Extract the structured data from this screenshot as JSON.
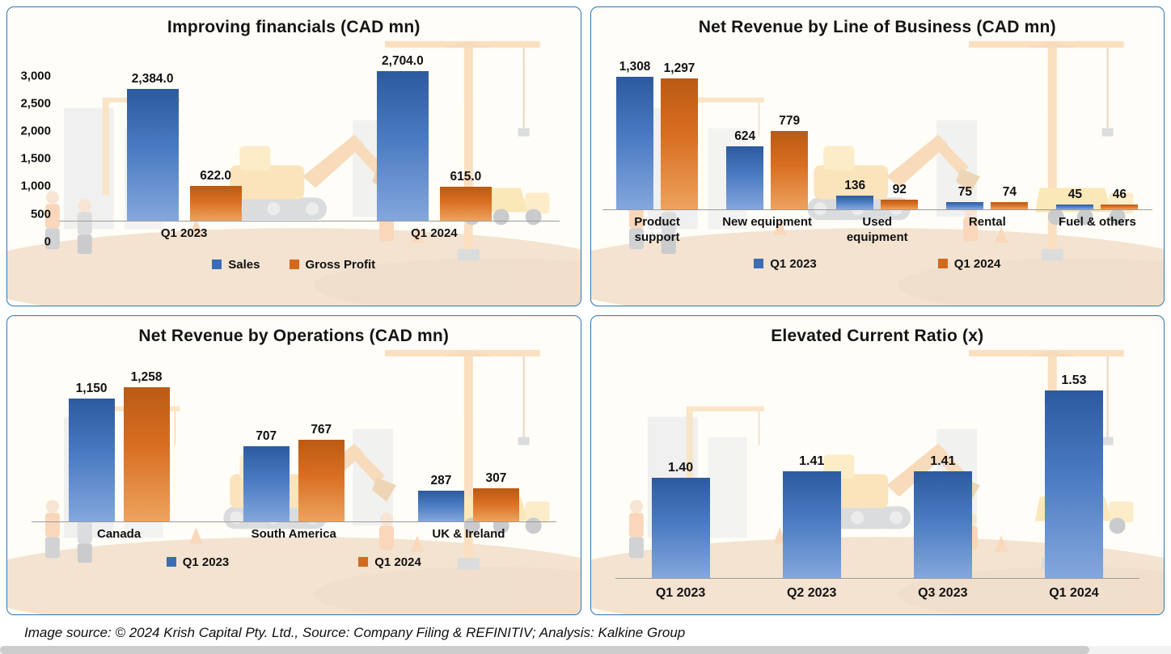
{
  "palette": {
    "blue": "#3c6cb4",
    "orange": "#d4691e"
  },
  "chart_data": [
    {
      "id": "improving-financials",
      "type": "bar",
      "title": "Improving financials (CAD mn)",
      "categories": [
        "Q1 2023",
        "Q1 2024"
      ],
      "series": [
        {
          "name": "Sales",
          "color": "blue",
          "values": [
            2384.0,
            2704.0
          ],
          "labels": [
            "2,384.0",
            "2,704.0"
          ]
        },
        {
          "name": "Gross Profit",
          "color": "orange",
          "values": [
            622.0,
            615.0
          ],
          "labels": [
            "622.0",
            "615.0"
          ]
        }
      ],
      "ylim": [
        0,
        3000
      ],
      "y_ticks": [
        "3,000",
        "2,500",
        "2,000",
        "1,500",
        "1,000",
        "500",
        "0"
      ],
      "y_tick_values": [
        3000,
        2500,
        2000,
        1500,
        1000,
        500,
        0
      ],
      "grid": false,
      "legend": [
        "Sales",
        "Gross Profit"
      ],
      "legend_position": "bottom"
    },
    {
      "id": "net-revenue-line-of-business",
      "type": "bar",
      "title": "Net Revenue by Line of Business (CAD mn)",
      "categories": [
        "Product support",
        "New equipment",
        "Used equipment",
        "Rental",
        "Fuel & others"
      ],
      "series": [
        {
          "name": "Q1 2023",
          "color": "blue",
          "values": [
            1308,
            624,
            136,
            75,
            45
          ],
          "labels": [
            "1,308",
            "624",
            "136",
            "75",
            "45"
          ]
        },
        {
          "name": "Q1 2024",
          "color": "orange",
          "values": [
            1297,
            779,
            92,
            74,
            46
          ],
          "labels": [
            "1,297",
            "779",
            "92",
            "74",
            "46"
          ]
        }
      ],
      "ylim": [
        0,
        1400
      ],
      "grid": false,
      "legend": [
        "Q1 2023",
        "Q1 2024"
      ],
      "legend_position": "bottom"
    },
    {
      "id": "net-revenue-operations",
      "type": "bar",
      "title": "Net Revenue by Operations (CAD mn)",
      "categories": [
        "Canada",
        "South America",
        "UK & Ireland"
      ],
      "series": [
        {
          "name": "Q1 2023",
          "color": "blue",
          "values": [
            1150,
            707,
            287
          ],
          "labels": [
            "1,150",
            "707",
            "287"
          ]
        },
        {
          "name": "Q1 2024",
          "color": "orange",
          "values": [
            1258,
            767,
            307
          ],
          "labels": [
            "1,258",
            "767",
            "307"
          ]
        }
      ],
      "ylim": [
        0,
        1400
      ],
      "grid": false,
      "legend": [
        "Q1 2023",
        "Q1 2024"
      ],
      "legend_position": "bottom"
    },
    {
      "id": "current-ratio",
      "type": "bar",
      "title": "Elevated Current Ratio (x)",
      "categories": [
        "Q1 2023",
        "Q2 2023",
        "Q3 2023",
        "Q1 2024"
      ],
      "series": [
        {
          "name": "Current Ratio",
          "color": "blue",
          "values": [
            1.4,
            1.41,
            1.41,
            1.53
          ],
          "labels": [
            "1.40",
            "1.41",
            "1.41",
            "1.53"
          ]
        }
      ],
      "ylim": [
        1.25,
        1.57
      ],
      "grid": false,
      "legend": null,
      "legend_position": "none"
    }
  ],
  "footer": {
    "text": "Image source: © 2024 Krish Capital Pty. Ltd., Source: Company Filing & REFINITIV; Analysis: Kalkine Group"
  }
}
